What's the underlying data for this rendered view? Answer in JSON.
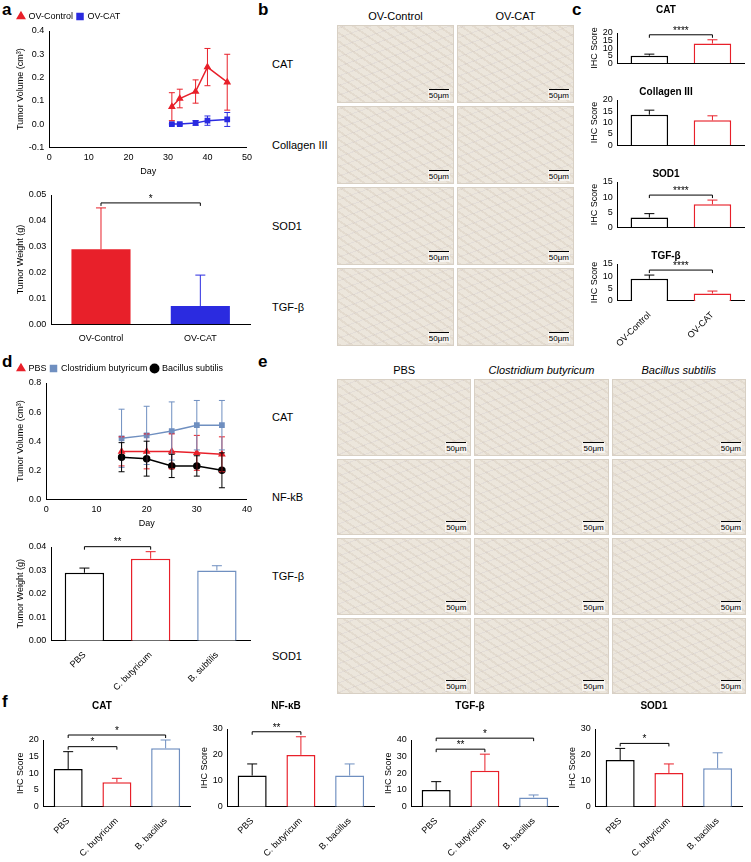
{
  "chart_data": [
    {
      "panel": "a",
      "type": "line",
      "x_label": "Day",
      "y_label": "Tumor Volume (cm³)",
      "x": [
        31,
        33,
        37,
        40,
        45
      ],
      "series": [
        {
          "name": "OV-Control",
          "color": "#e8202a",
          "marker": "triangle",
          "values": [
            0.075,
            0.11,
            0.14,
            0.245,
            0.18
          ],
          "errors": [
            0.06,
            0.04,
            0.05,
            0.08,
            0.12
          ]
        },
        {
          "name": "OV-CAT",
          "color": "#2b2be0",
          "marker": "square",
          "values": [
            0,
            0,
            0.005,
            0.015,
            0.02
          ],
          "errors": [
            0.003,
            0.004,
            0.01,
            0.02,
            0.03
          ]
        }
      ],
      "xlim": [
        0,
        50
      ],
      "xticks": [
        0,
        10,
        20,
        30,
        40,
        50
      ],
      "ylim": [
        -0.1,
        0.4
      ],
      "yticks": [
        -0.1,
        {
          "value": 0,
          "label": "0.0"
        },
        0.1,
        0.2,
        0.3,
        0.4
      ],
      "legend": "top left",
      "grid": false
    },
    {
      "type": "bar",
      "y_label": "Tumor Weight (g)",
      "categories": [
        "OV-Control",
        "OV-CAT"
      ],
      "values": [
        0.029,
        0.007
      ],
      "errors": [
        0.016,
        0.012
      ],
      "colors": [
        "#e8202a",
        "#2b2be0"
      ],
      "ylim": [
        0,
        0.05
      ],
      "yticks": [
        {
          "value": 0,
          "label": "0.00"
        },
        0.01,
        0.02,
        0.03,
        0.04,
        0.05
      ],
      "significance": [
        {
          "from": 0,
          "to": 1,
          "label": "*"
        }
      ],
      "grid": false
    },
    {
      "panel": "c",
      "type": "bar",
      "title": "CAT",
      "y_label": "IHC Score",
      "categories": [
        null,
        null
      ],
      "values": [
        5,
        13
      ],
      "errors": [
        1,
        2.5
      ],
      "colors": [
        "#000000",
        "#e8202a"
      ],
      "ylim": [
        0,
        20
      ],
      "yticks": [
        0,
        5,
        10,
        15,
        20
      ],
      "significance": [
        {
          "from": 0,
          "to": 1,
          "label": "****"
        }
      ],
      "grid": false
    },
    {
      "type": "bar",
      "title": "Collagen III",
      "y_label": "IHC Score",
      "categories": [
        null,
        null
      ],
      "values": [
        13.5,
        11
      ],
      "errors": [
        2,
        2
      ],
      "colors": [
        "#000000",
        "#e8202a"
      ],
      "ylim": [
        0,
        20
      ],
      "yticks": [
        0,
        5,
        10,
        15,
        20
      ],
      "grid": false
    },
    {
      "type": "bar",
      "title": "SOD1",
      "y_label": "IHC Score",
      "categories": [
        null,
        null
      ],
      "values": [
        3.2,
        7.6
      ],
      "errors": [
        1.3,
        1.4
      ],
      "colors": [
        "#000000",
        "#e8202a"
      ],
      "ylim": [
        0,
        15
      ],
      "yticks": [
        0,
        5,
        10,
        15
      ],
      "significance": [
        {
          "from": 0,
          "to": 1,
          "label": "****"
        }
      ],
      "grid": false
    },
    {
      "type": "bar",
      "title": "TGF-β",
      "y_label": "IHC Score",
      "categories": [
        "OV-Control",
        "OV-CAT"
      ],
      "values": [
        9,
        3
      ],
      "errors": [
        1.5,
        1
      ],
      "colors": [
        "#000000",
        "#e8202a"
      ],
      "ylim": [
        0,
        15
      ],
      "yticks": [
        0,
        5,
        10,
        15
      ],
      "significance": [
        {
          "from": 0,
          "to": 1,
          "label": "****"
        }
      ],
      "grid": false
    },
    {
      "panel": "d",
      "type": "line",
      "x_label": "Day",
      "y_label": "Tumor Volume (cm³)",
      "x": [
        15,
        20,
        25,
        30,
        35
      ],
      "series": [
        {
          "name": "PBS",
          "color": "#e8202a",
          "marker": "triangle",
          "values": [
            0.33,
            0.33,
            0.33,
            0.32,
            0.31
          ],
          "errors": [
            0.1,
            0.12,
            0.12,
            0.12,
            0.12
          ]
        },
        {
          "name": "Clostridium butyricum",
          "color": "#6f8fc0",
          "marker": "square",
          "values": [
            0.42,
            0.44,
            0.47,
            0.51,
            0.51
          ],
          "errors": [
            0.2,
            0.2,
            0.2,
            0.17,
            0.17
          ]
        },
        {
          "name": "Bacillus subtilis",
          "color": "#000000",
          "marker": "circle",
          "values": [
            0.29,
            0.28,
            0.23,
            0.23,
            0.2
          ],
          "errors": [
            0.1,
            0.12,
            0.08,
            0.07,
            0.12
          ]
        }
      ],
      "xlim": [
        0,
        40
      ],
      "xticks": [
        0,
        10,
        20,
        30,
        40
      ],
      "ylim": [
        0,
        0.8
      ],
      "yticks": [
        {
          "value": 0,
          "label": "0.0"
        },
        0.2,
        0.4,
        0.6,
        0.8
      ],
      "legend": "top left",
      "grid": false
    },
    {
      "type": "bar",
      "y_label": "Tumor Weight (g)",
      "categories": [
        "PBS",
        "C. butyricum",
        "B. subtilis"
      ],
      "values": [
        0.029,
        0.035,
        0.03
      ],
      "errors": [
        0.002,
        0.003,
        0.002
      ],
      "colors": [
        "#000000",
        "#e8202a",
        "#6f8fc0"
      ],
      "ylim": [
        0,
        0.04
      ],
      "yticks": [
        {
          "value": 0,
          "label": "0.00"
        },
        0.01,
        0.02,
        0.03,
        0.04
      ],
      "significance": [
        {
          "from": 0,
          "to": 1,
          "label": "**"
        }
      ],
      "grid": false
    },
    {
      "panel": "f",
      "type": "bar",
      "title": "CAT",
      "y_label": "IHC Score",
      "categories": [
        "PBS",
        "C. butyricum",
        "B. bacillus"
      ],
      "values": [
        11.3,
        7.3,
        17.5
      ],
      "errors": [
        5.2,
        1.2,
        2.5
      ],
      "colors": [
        "#000000",
        "#e8202a",
        "#6f8fc0"
      ],
      "ylim": [
        0,
        20
      ],
      "yticks": [
        0,
        5,
        10,
        15,
        20
      ],
      "significance": [
        {
          "from": 0,
          "to": 1,
          "label": "*"
        },
        {
          "from": 0,
          "to": 2,
          "label": "*"
        }
      ],
      "grid": false
    },
    {
      "type": "bar",
      "title": "NF-κB",
      "y_label": "IHC Score",
      "categories": [
        "PBS",
        "C. butyricum",
        "B. bacillus"
      ],
      "values": [
        12,
        20,
        12
      ],
      "errors": [
        4.5,
        7,
        4.5
      ],
      "colors": [
        "#000000",
        "#e8202a",
        "#6f8fc0"
      ],
      "ylim": [
        0,
        30
      ],
      "yticks": [
        0,
        10,
        20,
        30
      ],
      "significance": [
        {
          "from": 0,
          "to": 1,
          "label": "**"
        }
      ],
      "grid": false
    },
    {
      "type": "bar",
      "title": "TGF-β",
      "y_label": "IHC Score",
      "categories": [
        "PBS",
        "C. butyricum",
        "B. bacillus"
      ],
      "values": [
        10,
        21.5,
        5.5
      ],
      "errors": [
        5,
        10,
        1.5
      ],
      "colors": [
        "#000000",
        "#e8202a",
        "#6f8fc0"
      ],
      "ylim": [
        0,
        40
      ],
      "yticks": [
        0,
        10,
        20,
        30,
        40
      ],
      "significance": [
        {
          "from": 0,
          "to": 1,
          "label": "**"
        },
        {
          "from": 0,
          "to": 2,
          "label": "*"
        }
      ],
      "grid": false
    },
    {
      "type": "bar",
      "title": "SOD1",
      "y_label": "IHC Score",
      "categories": [
        "PBS",
        "C. butyricum",
        "B. bacillus"
      ],
      "values": [
        18,
        13,
        14.8
      ],
      "errors": [
        4.5,
        3.5,
        6
      ],
      "colors": [
        "#000000",
        "#e8202a",
        "#6f8fc0"
      ],
      "ylim": [
        0,
        30
      ],
      "yticks": [
        0,
        10,
        20,
        30
      ],
      "significance": [
        {
          "from": 0,
          "to": 1,
          "label": "*"
        }
      ],
      "grid": false
    }
  ],
  "image_panels": [
    {
      "panel": "b",
      "columns": [
        "OV-Control",
        "OV-CAT"
      ],
      "rows": [
        "CAT",
        "Collagen III",
        "SOD1",
        "TGF-β"
      ],
      "scale_bar": "50μm"
    },
    {
      "panel": "e",
      "columns": [
        "PBS",
        "Clostridium butyricum",
        "Bacillus subtilis"
      ],
      "rows": [
        "CAT",
        "NF-kB",
        "TGF-β",
        "SOD1"
      ],
      "scale_bar": "50μm"
    }
  ]
}
